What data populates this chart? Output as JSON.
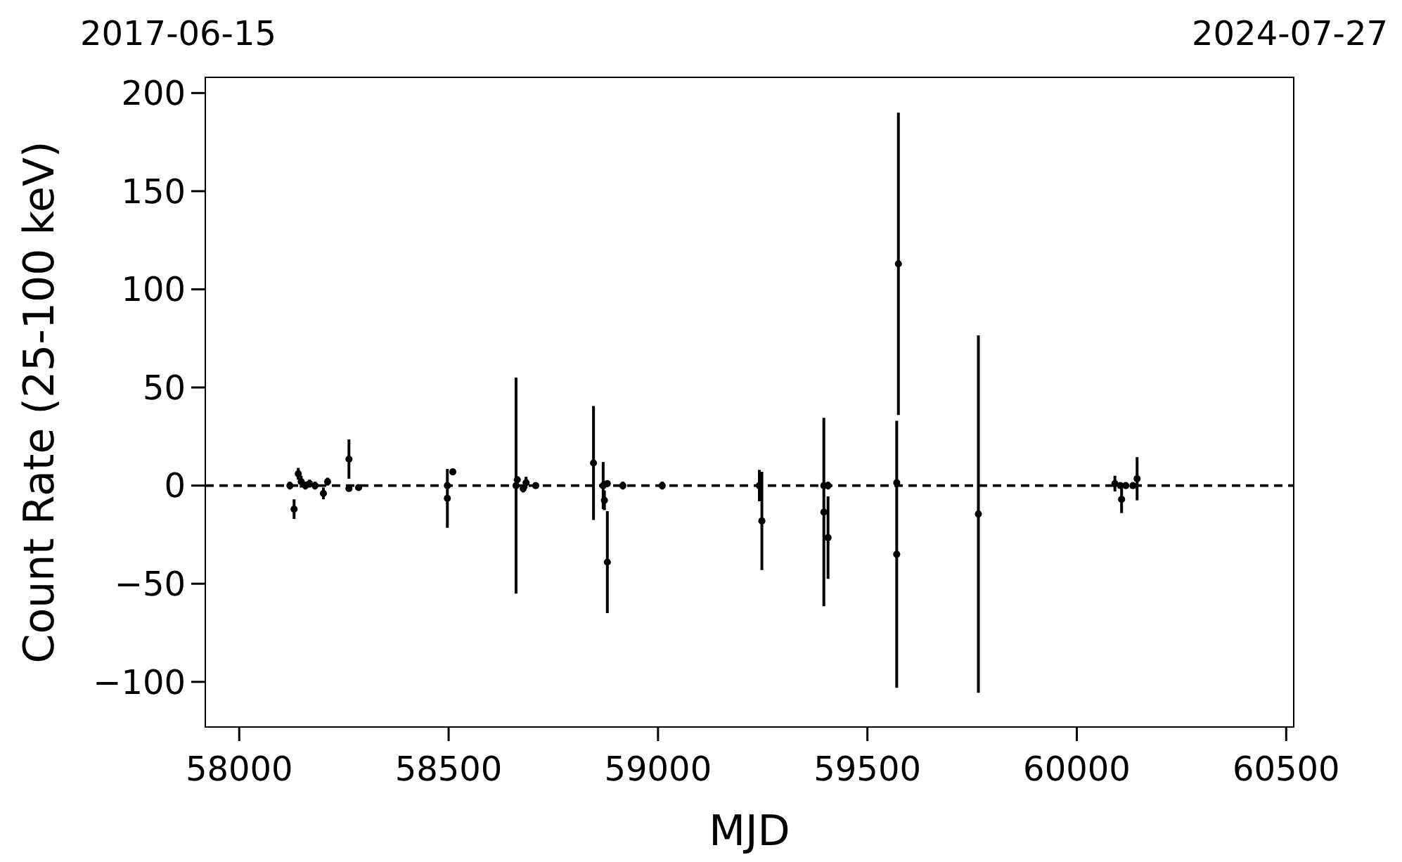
{
  "chart_data": {
    "type": "scatter",
    "xlabel": "MJD",
    "ylabel": "Count Rate (25-100 keV)",
    "annotations": [
      "2017-06-15",
      "2024-07-27"
    ],
    "xlim": [
      57919,
      60518
    ],
    "xticks": [
      58000,
      58500,
      59000,
      59500,
      60000,
      60500
    ],
    "ylim": [
      -123,
      208
    ],
    "yticks": [
      {
        "value": -100,
        "label": "−100"
      },
      {
        "value": -50,
        "label": "−50"
      },
      0,
      50,
      100,
      150,
      200
    ],
    "marker": "circle",
    "grid": false,
    "ref_lines": [
      {
        "axis": "y",
        "value": 0,
        "color": "#000000",
        "line_style": "dashed"
      }
    ],
    "series": [
      {
        "color": "#000000",
        "x": [
          58121,
          58131,
          58141,
          58148,
          58158,
          58168,
          58181,
          58201,
          58211,
          58262,
          58262,
          58285,
          58497,
          58497,
          58510,
          58661,
          58664,
          58678,
          58685,
          58708,
          58846,
          58869,
          58872,
          58879,
          58879,
          58916,
          59010,
          59242,
          59248,
          59396,
          59396,
          59406,
          59406,
          59570,
          59570,
          59574,
          59765,
          60091,
          60104,
          60107,
          60117,
          60134,
          60144
        ],
        "values": [
          0,
          -12,
          6,
          2,
          0,
          1,
          0,
          -4,
          2,
          13.5,
          -1.5,
          -1,
          -6.5,
          0,
          7,
          0,
          3,
          -1.5,
          1.5,
          0,
          11.5,
          0,
          -7.5,
          1,
          -39,
          0,
          0,
          0,
          -18,
          0,
          -13.5,
          0,
          -26.5,
          1.5,
          -35,
          113,
          -14.5,
          1,
          0,
          -7,
          0,
          0,
          3.5
        ],
        "errors": [
          2,
          5,
          3,
          3,
          2,
          2,
          2,
          3,
          2,
          10,
          null,
          null,
          15,
          null,
          null,
          55,
          null,
          2,
          3,
          null,
          29,
          12,
          5,
          null,
          26,
          2,
          2,
          8,
          25,
          null,
          48,
          2,
          21,
          null,
          68,
          77,
          91,
          4,
          null,
          7,
          null,
          null,
          11
        ]
      }
    ]
  }
}
